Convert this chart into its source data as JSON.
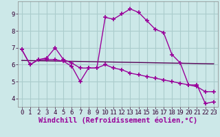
{
  "xlabel": "Windchill (Refroidissement éolien,°C)",
  "hours": [
    0,
    1,
    2,
    3,
    4,
    5,
    6,
    7,
    8,
    9,
    10,
    11,
    12,
    13,
    14,
    15,
    16,
    17,
    18,
    19,
    20,
    21,
    22,
    23
  ],
  "line1": [
    6.9,
    6.0,
    6.3,
    6.3,
    6.3,
    6.2,
    5.9,
    5.0,
    5.8,
    5.8,
    8.8,
    8.7,
    9.0,
    9.3,
    9.1,
    8.6,
    8.1,
    7.9,
    6.6,
    6.1,
    4.8,
    4.8,
    3.7,
    3.8
  ],
  "line2": [
    6.9,
    6.0,
    6.3,
    6.4,
    7.0,
    6.3,
    6.1,
    5.8,
    5.8,
    5.8,
    6.0,
    5.8,
    5.7,
    5.5,
    5.4,
    5.3,
    5.2,
    5.1,
    5.0,
    4.9,
    4.8,
    4.7,
    4.4,
    4.4
  ],
  "reg_line_x": [
    0,
    23
  ],
  "reg_line_y": [
    6.25,
    6.05
  ],
  "bg_color": "#cce8e8",
  "grid_color": "#aacccc",
  "line_color": "#990099",
  "reg_color": "#550055",
  "ylim": [
    3.5,
    9.75
  ],
  "xlim": [
    -0.5,
    23.5
  ],
  "yticks": [
    4,
    5,
    6,
    7,
    8,
    9
  ],
  "xticks": [
    0,
    1,
    2,
    3,
    4,
    5,
    6,
    7,
    8,
    9,
    10,
    11,
    12,
    13,
    14,
    15,
    16,
    17,
    18,
    19,
    20,
    21,
    22,
    23
  ],
  "marker": "+",
  "markersize": 4,
  "markeredgewidth": 1.2,
  "linewidth": 1.0,
  "xlabel_fontsize": 7.5,
  "tick_fontsize": 6.5
}
